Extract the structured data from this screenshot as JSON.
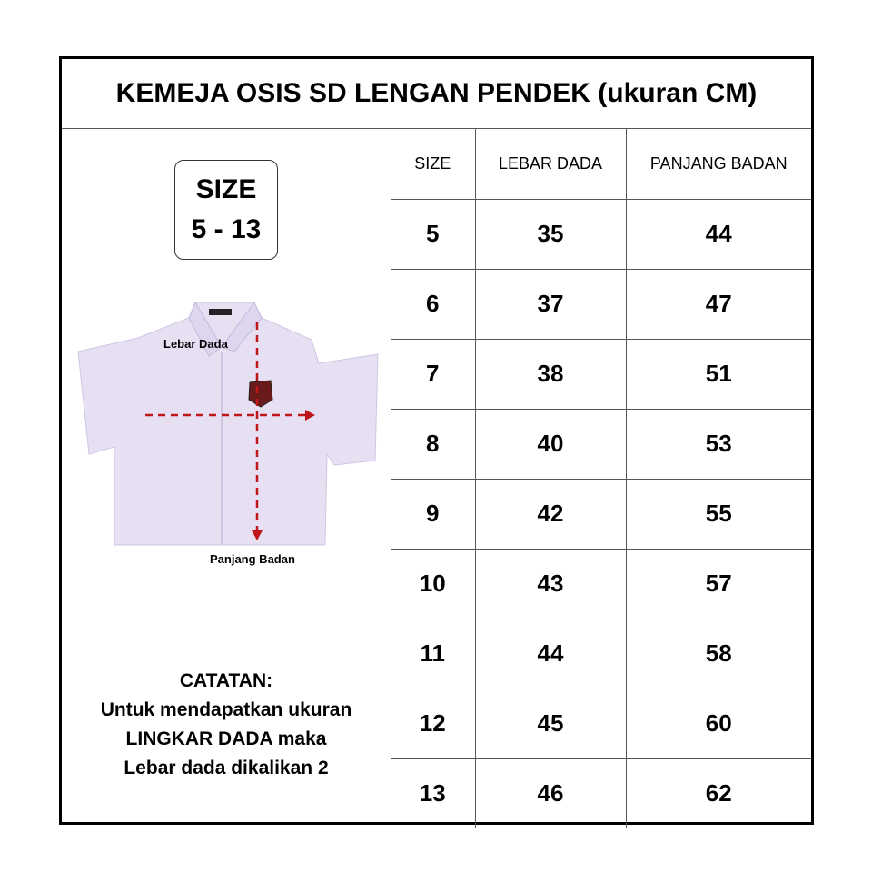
{
  "title": "KEMEJA OSIS SD LENGAN PENDEK (ukuran CM)",
  "size_badge": {
    "line1": "SIZE",
    "line2": "5 - 13"
  },
  "illustration": {
    "label_chest": "Lebar Dada",
    "label_length": "Panjang Badan",
    "shirt_color": "#e6e0f2",
    "arrow_color": "#c0161b"
  },
  "note": {
    "heading": "CATATAN:",
    "lines": [
      "Untuk mendapatkan ukuran",
      "LINGKAR DADA maka",
      "Lebar dada dikalikan 2"
    ]
  },
  "table": {
    "headers": [
      "SIZE",
      "LEBAR DADA",
      "PANJANG BADAN"
    ],
    "rows": [
      [
        "5",
        "35",
        "44"
      ],
      [
        "6",
        "37",
        "47"
      ],
      [
        "7",
        "38",
        "51"
      ],
      [
        "8",
        "40",
        "53"
      ],
      [
        "9",
        "42",
        "55"
      ],
      [
        "10",
        "43",
        "57"
      ],
      [
        "11",
        "44",
        "58"
      ],
      [
        "12",
        "45",
        "60"
      ],
      [
        "13",
        "46",
        "62"
      ]
    ]
  }
}
